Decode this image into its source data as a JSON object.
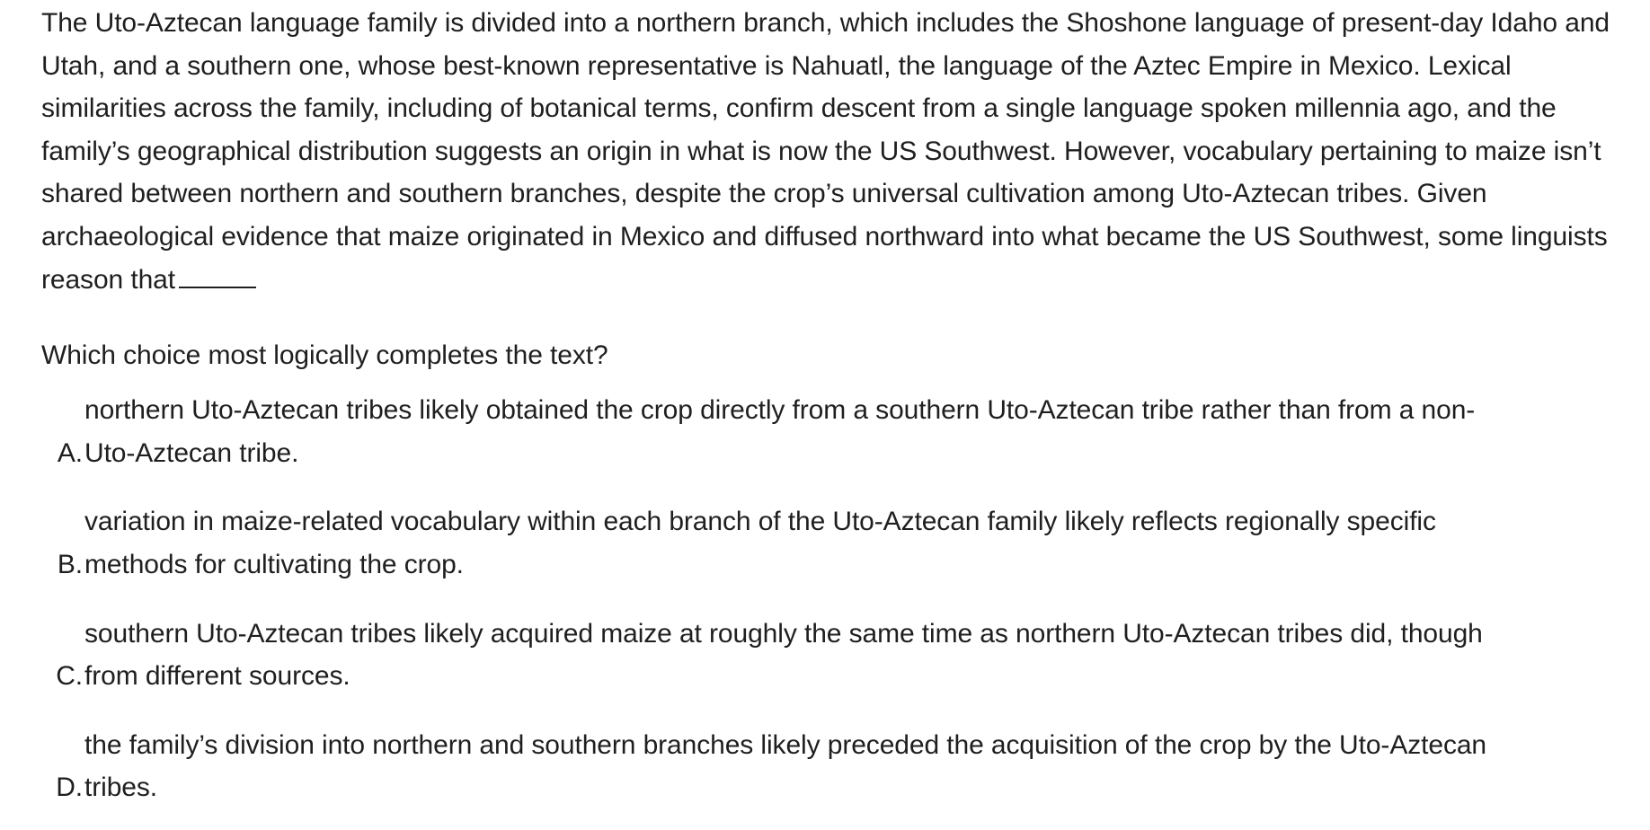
{
  "passage": {
    "text": "The Uto-Aztecan language family is divided into a northern branch, which includes the Shoshone language of present-day Idaho and Utah, and a southern one, whose best-known representative is Nahuatl, the language of the Aztec Empire in Mexico. Lexical similarities across the family, including of botanical terms, confirm descent from a single language spoken millennia ago, and the family’s geographical distribution suggests an origin in what is now the US Southwest. However, vocabulary pertaining to maize isn’t shared between northern and southern branches, despite the crop’s universal cultivation among Uto-Aztecan tribes. Given archaeological evidence that maize originated in Mexico and diffused northward into what became the US Southwest, some linguists reason that"
  },
  "question": {
    "prompt": "Which choice most logically completes the text?"
  },
  "choices": [
    {
      "letter": "A.",
      "line1": "northern Uto-Aztecan tribes likely obtained the crop directly from a southern Uto-Aztecan tribe rather than from a non-",
      "line2": "Uto-Aztecan tribe."
    },
    {
      "letter": "B.",
      "line1": "variation in maize-related vocabulary within each branch of the Uto-Aztecan family likely reflects regionally specific",
      "line2": "methods for cultivating the crop."
    },
    {
      "letter": "C.",
      "line1": "southern Uto-Aztecan tribes likely acquired maize at roughly the same time as northern Uto-Aztecan tribes did, though",
      "line2": "from different sources."
    },
    {
      "letter": "D.",
      "line1": "the family’s division into northern and southern branches likely preceded the acquisition of the crop by the Uto-Aztecan",
      "line2": "tribes."
    }
  ]
}
